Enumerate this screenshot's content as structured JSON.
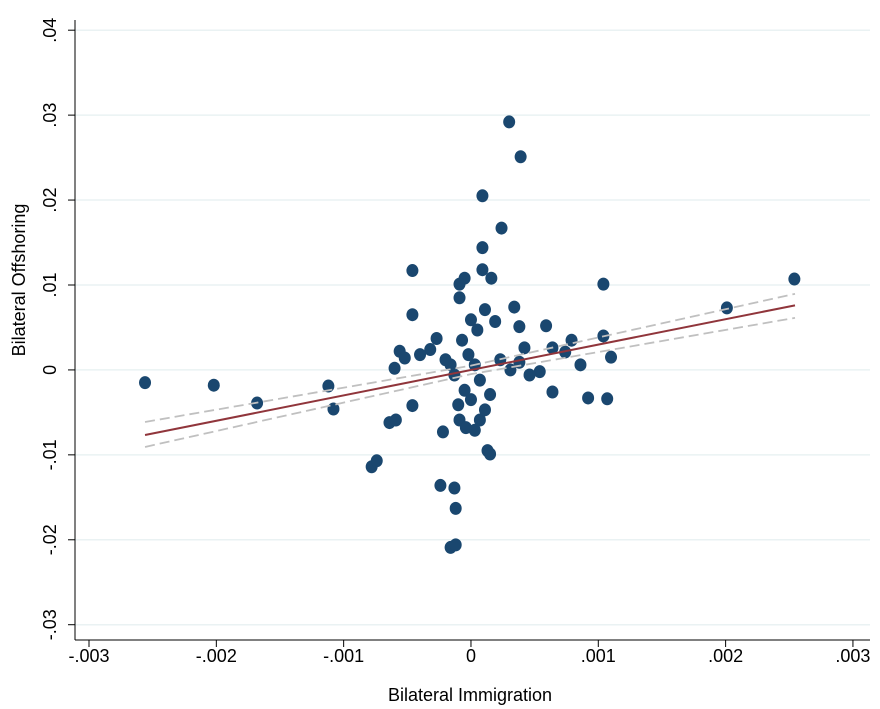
{
  "chart_data": {
    "type": "scatter",
    "x_label": "Bilateral Immigration",
    "y_label": "Bilateral Offshoring",
    "xlim": [
      -0.00311,
      0.003134
    ],
    "ylim": [
      -0.0318,
      0.0412
    ],
    "xticks": [
      {
        "value": -0.003,
        "label": "-.003"
      },
      {
        "value": -0.002,
        "label": "-.002"
      },
      {
        "value": -0.001,
        "label": "-.001"
      },
      0,
      {
        "value": 0.001,
        "label": ".001"
      },
      {
        "value": 0.002,
        "label": ".002"
      },
      {
        "value": 0.003,
        "label": ".003"
      }
    ],
    "yticks": [
      {
        "value": -0.03,
        "label": "-.03"
      },
      {
        "value": -0.02,
        "label": "-.02"
      },
      {
        "value": -0.01,
        "label": "-.01"
      },
      0,
      {
        "value": 0.01,
        "label": ".01"
      },
      {
        "value": 0.02,
        "label": ".02"
      },
      {
        "value": 0.03,
        "label": ".03"
      },
      {
        "value": 0.04,
        "label": ".04"
      }
    ],
    "grid": true,
    "series": [
      {
        "type": "scatter",
        "color": "#1a476f",
        "x": [
          -0.00256,
          -0.00202,
          -0.00168,
          -0.00112,
          -0.00108,
          -0.00078,
          -0.00074,
          -0.00064,
          -0.00059,
          -0.00046,
          -0.00046,
          -0.00046,
          -0.00024,
          -0.00022,
          -0.00016,
          -0.00013,
          -0.00012,
          -0.00012,
          -5e-05,
          9e-05,
          9e-05,
          9e-05,
          0.00016,
          0.00024,
          0.0003,
          0.00039,
          0.00034,
          0.00038,
          0.00059,
          0.00079,
          0.00092,
          0.00104,
          0.00107,
          0.00104,
          0.0011,
          0.00201,
          0.00254,
          0.00013,
          0.00015,
          -9e-05,
          -9e-05,
          0.00086,
          0.00064,
          0.00074,
          0.00042,
          0.00054,
          -0.00027,
          -0.00032,
          -0.00056,
          -0.00052,
          -0.0006,
          -0.0004,
          0.00064,
          -9e-05,
          3e-05,
          7e-05,
          -4e-05,
          0,
          5e-05,
          -7e-05,
          0.00011,
          0.00019,
          -2e-05,
          3e-05,
          7e-05,
          -5e-05,
          0.00015,
          -0.00013,
          0.00023,
          0.00031,
          -0.00016,
          0,
          0.00011,
          -0.0001,
          -0.0002,
          0.00038,
          0.00046
        ],
        "values": [
          -0.0015,
          -0.0018,
          -0.0039,
          -0.0019,
          -0.0046,
          -0.0114,
          -0.0107,
          -0.0062,
          -0.0059,
          0.0117,
          0.0065,
          -0.0042,
          -0.0136,
          -0.0073,
          -0.0209,
          -0.0139,
          -0.0206,
          -0.0163,
          0.0108,
          0.0205,
          0.0144,
          0.0118,
          0.0108,
          0.0167,
          0.0292,
          0.0251,
          0.0074,
          0.0051,
          0.0052,
          0.0035,
          -0.0033,
          0.0101,
          -0.0034,
          0.004,
          0.0015,
          0.0073,
          0.0107,
          -0.0095,
          -0.0099,
          0.0101,
          0.0085,
          0.0006,
          0.0026,
          0.0021,
          0.0026,
          -0.0002,
          0.0037,
          0.0024,
          0.0022,
          0.0014,
          0.0002,
          0.0018,
          -0.0026,
          -0.0059,
          -0.0071,
          -0.0059,
          -0.0068,
          0.0059,
          0.0047,
          0.0035,
          0.0071,
          0.0057,
          0.0018,
          0.0006,
          -0.0012,
          -0.0024,
          -0.0029,
          -0.0006,
          0.0012,
          0,
          0.0006,
          -0.0035,
          -0.0047,
          -0.0041,
          0.0012,
          0.0009,
          -0.0006
        ]
      },
      {
        "type": "line",
        "color": "#90353b",
        "dash": false,
        "x": [
          -0.00256,
          0.002545
        ],
        "values": [
          -0.00766,
          0.0076
        ]
      },
      {
        "type": "line",
        "color": "#c0c0c0",
        "dash": true,
        "x": [
          -0.00256,
          0,
          0.002545
        ],
        "values": [
          -0.00613,
          0.0005,
          0.00896
        ]
      },
      {
        "type": "line",
        "color": "#c0c0c0",
        "dash": true,
        "x": [
          -0.00256,
          0,
          0.002545
        ],
        "values": [
          -0.00907,
          -0.0005,
          0.00613
        ]
      }
    ]
  }
}
